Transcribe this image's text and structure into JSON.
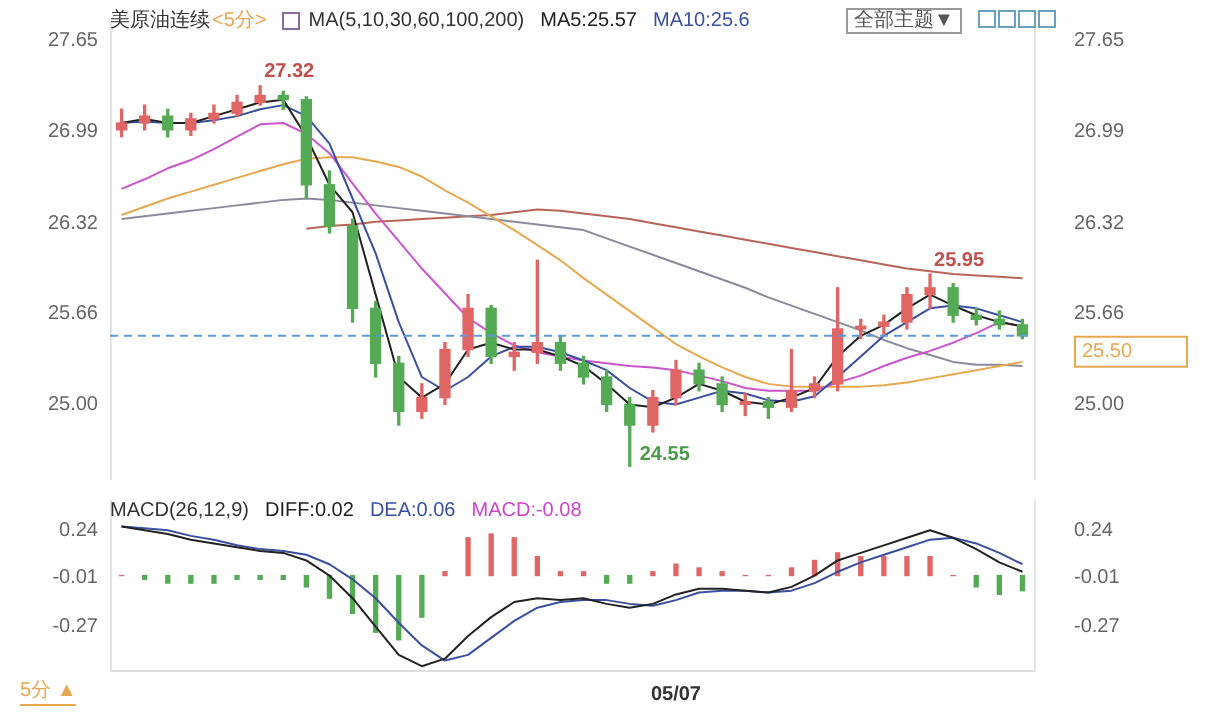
{
  "chart_data": [
    {
      "type": "candlestick",
      "title": "美原油连续",
      "subtitle": "<5分>",
      "legend_title": "MA(5,10,30,60,100,200)",
      "legend": "top",
      "tick_labels": "y",
      "categories": [
        null,
        null,
        null,
        null,
        null,
        null,
        null,
        null,
        null,
        null,
        null,
        null,
        null,
        null,
        null,
        null,
        null,
        null,
        null,
        null,
        null,
        null,
        null,
        null,
        null,
        null,
        null,
        null,
        null,
        null,
        null,
        null,
        null,
        null,
        null,
        null,
        null,
        null,
        null,
        null
      ],
      "ohlc": [
        [
          27.0,
          27.15,
          26.95,
          27.05
        ],
        [
          27.05,
          27.18,
          27.0,
          27.1
        ],
        [
          27.1,
          27.15,
          26.95,
          27.0
        ],
        [
          27.0,
          27.12,
          26.96,
          27.08
        ],
        [
          27.08,
          27.18,
          27.05,
          27.12
        ],
        [
          27.12,
          27.25,
          27.1,
          27.2
        ],
        [
          27.2,
          27.32,
          27.18,
          27.25
        ],
        [
          27.25,
          27.28,
          27.15,
          27.22
        ],
        [
          27.22,
          27.24,
          26.5,
          26.6
        ],
        [
          26.6,
          26.7,
          26.25,
          26.3
        ],
        [
          26.3,
          26.35,
          25.6,
          25.7
        ],
        [
          25.7,
          25.75,
          25.2,
          25.3
        ],
        [
          25.3,
          25.35,
          24.85,
          24.95
        ],
        [
          24.95,
          25.15,
          24.9,
          25.05
        ],
        [
          25.05,
          25.45,
          25.0,
          25.4
        ],
        [
          25.4,
          25.8,
          25.35,
          25.7
        ],
        [
          25.7,
          25.72,
          25.3,
          25.35
        ],
        [
          25.35,
          25.45,
          25.25,
          25.38
        ],
        [
          25.38,
          26.05,
          25.3,
          25.45
        ],
        [
          25.45,
          25.5,
          25.25,
          25.3
        ],
        [
          25.3,
          25.35,
          25.15,
          25.2
        ],
        [
          25.2,
          25.25,
          24.95,
          25.0
        ],
        [
          25.0,
          25.05,
          24.55,
          24.85
        ],
        [
          24.85,
          25.1,
          24.8,
          25.05
        ],
        [
          25.05,
          25.32,
          25.0,
          25.25
        ],
        [
          25.25,
          25.3,
          25.1,
          25.15
        ],
        [
          25.15,
          25.2,
          24.95,
          25.0
        ],
        [
          25.0,
          25.08,
          24.92,
          25.02
        ],
        [
          25.02,
          25.05,
          24.9,
          24.98
        ],
        [
          24.98,
          25.4,
          24.95,
          25.1
        ],
        [
          25.1,
          25.2,
          25.05,
          25.15
        ],
        [
          25.15,
          25.85,
          25.1,
          25.55
        ],
        [
          25.55,
          25.62,
          25.48,
          25.57
        ],
        [
          25.57,
          25.65,
          25.5,
          25.6
        ],
        [
          25.6,
          25.85,
          25.55,
          25.8
        ],
        [
          25.8,
          25.95,
          25.7,
          25.85
        ],
        [
          25.85,
          25.88,
          25.6,
          25.65
        ],
        [
          25.65,
          25.7,
          25.58,
          25.62
        ],
        [
          25.62,
          25.68,
          25.55,
          25.58
        ],
        [
          25.58,
          25.62,
          25.48,
          25.5
        ]
      ],
      "colors": [
        "#e06666",
        "#e06666",
        "#55aa55",
        "#e06666",
        "#e06666",
        "#e06666",
        "#e06666",
        "#55aa55",
        "#55aa55",
        "#55aa55",
        "#55aa55",
        "#55aa55",
        "#55aa55",
        "#e06666",
        "#e06666",
        "#e06666",
        "#55aa55",
        "#e06666",
        "#e06666",
        "#55aa55",
        "#55aa55",
        "#55aa55",
        "#55aa55",
        "#e06666",
        "#e06666",
        "#55aa55",
        "#55aa55",
        "#e06666",
        "#55aa55",
        "#e06666",
        "#e06666",
        "#e06666",
        "#e06666",
        "#e06666",
        "#e06666",
        "#e06666",
        "#55aa55",
        "#55aa55",
        "#55aa55",
        "#55aa55"
      ],
      "series": [
        {
          "name": "MA5:25.57",
          "type": "line",
          "color": "#222222",
          "values": [
            27.05,
            27.08,
            27.05,
            27.05,
            27.1,
            27.15,
            27.2,
            27.22,
            26.95,
            26.6,
            26.4,
            25.8,
            25.2,
            25.05,
            25.15,
            25.4,
            25.45,
            25.4,
            25.4,
            25.35,
            25.28,
            25.15,
            25.0,
            24.98,
            25.05,
            25.15,
            25.1,
            25.02,
            25.0,
            25.05,
            25.12,
            25.35,
            25.5,
            25.58,
            25.7,
            25.8,
            25.72,
            25.65,
            25.6,
            25.57
          ]
        },
        {
          "name": "MA10:25.6",
          "type": "line",
          "color": "#3a4fa0",
          "values": [
            27.05,
            27.06,
            27.05,
            27.05,
            27.07,
            27.1,
            27.15,
            27.18,
            27.1,
            26.9,
            26.5,
            26.1,
            25.6,
            25.2,
            25.1,
            25.2,
            25.35,
            25.42,
            25.42,
            25.38,
            25.32,
            25.25,
            25.12,
            25.02,
            25.0,
            25.05,
            25.1,
            25.08,
            25.03,
            25.02,
            25.06,
            25.2,
            25.35,
            25.5,
            25.6,
            25.7,
            25.72,
            25.7,
            25.65,
            25.6
          ]
        },
        {
          "type": "line",
          "color": "#cc55cc",
          "values": [
            26.57,
            26.64,
            26.72,
            26.78,
            26.86,
            26.95,
            27.04,
            27.05,
            26.97,
            26.83,
            26.61,
            26.39,
            26.19,
            25.99,
            25.81,
            25.63,
            25.52,
            25.43,
            25.38,
            25.35,
            25.32,
            25.3,
            25.28,
            25.27,
            25.25,
            25.21,
            25.17,
            25.12,
            25.1,
            25.1,
            25.1,
            25.16,
            25.21,
            25.28,
            25.34,
            25.39,
            25.45,
            25.52,
            25.6,
            25.57
          ]
        },
        {
          "type": "line",
          "color": "#e8a850",
          "values": [
            26.38,
            26.44,
            26.5,
            26.55,
            26.6,
            26.65,
            26.7,
            26.75,
            26.79,
            26.8,
            26.8,
            26.77,
            26.73,
            26.66,
            26.56,
            26.47,
            26.37,
            26.27,
            26.16,
            26.05,
            25.92,
            25.8,
            25.68,
            25.56,
            25.44,
            25.35,
            25.27,
            25.2,
            25.15,
            25.13,
            25.13,
            25.13,
            25.13,
            25.14,
            25.16,
            25.19,
            25.22,
            25.25,
            25.28,
            25.31
          ]
        },
        {
          "type": "line",
          "color": "#8a8a9a",
          "values": [
            26.35,
            26.37,
            26.39,
            26.41,
            26.43,
            26.45,
            26.47,
            26.49,
            26.5,
            26.49,
            26.47,
            26.45,
            26.43,
            26.41,
            26.39,
            26.37,
            26.35,
            26.33,
            26.31,
            26.29,
            26.27,
            26.21,
            26.15,
            26.09,
            26.03,
            25.97,
            25.91,
            25.85,
            25.78,
            25.72,
            25.66,
            25.6,
            25.54,
            25.47,
            25.41,
            25.36,
            25.31,
            25.29,
            25.29,
            25.28
          ]
        },
        {
          "type": "line",
          "color": "#b86458",
          "values": [
            null,
            null,
            null,
            null,
            null,
            null,
            null,
            null,
            26.28,
            26.3,
            26.31,
            26.33,
            26.34,
            26.35,
            26.36,
            26.37,
            26.38,
            26.4,
            26.42,
            26.41,
            26.39,
            26.37,
            26.35,
            26.32,
            26.29,
            26.26,
            26.23,
            26.2,
            26.17,
            26.14,
            26.11,
            26.08,
            26.05,
            26.02,
            25.99,
            25.97,
            25.95,
            25.94,
            25.93,
            25.92
          ]
        }
      ],
      "ylim": [
        24.45,
        27.8
      ],
      "yticks": [
        {
          "value": 25,
          "label": "25.00"
        },
        25.66,
        26.32,
        26.99,
        27.65
      ],
      "y2lim": [
        24.45,
        27.8
      ],
      "y2ticks": [
        {
          "value": 25,
          "label": "25.00"
        },
        25.66,
        26.32,
        26.99,
        27.65
      ],
      "ref_lines": [
        {
          "axis": "y2",
          "value": 25.5,
          "label": "25.50",
          "color": "#5b9bd5",
          "line_style": "dashed"
        }
      ],
      "annotations": [
        {
          "text": "27.32",
          "y": 27.32
        },
        {
          "text": "25.95",
          "y": 25.95
        },
        "24.55",
        "全部主题▼"
      ]
    },
    {
      "type": "bar",
      "legend_title": "MACD(26,12,9)",
      "legend": "top left",
      "categories": [
        null,
        null,
        null,
        null,
        null,
        null,
        null,
        null,
        null,
        null,
        null,
        null,
        null,
        null,
        null,
        null,
        null,
        null,
        null,
        null,
        null,
        null,
        null,
        null,
        "05/07",
        null,
        null,
        null,
        null,
        null,
        null,
        null,
        null,
        null,
        null,
        null,
        null,
        null,
        null,
        null
      ],
      "series": [
        {
          "type": "bar",
          "colors": [
            "#e06666",
            "#55aa55",
            "#55aa55",
            "#55aa55",
            "#55aa55",
            "#55aa55",
            "#55aa55",
            "#55aa55",
            "#55aa55",
            "#55aa55",
            "#55aa55",
            "#55aa55",
            "#55aa55",
            "#55aa55",
            "#e06666",
            "#e06666",
            "#e06666",
            "#e06666",
            "#e06666",
            "#e06666",
            "#e06666",
            "#55aa55",
            "#55aa55",
            "#e06666",
            "#e06666",
            "#e06666",
            "#e06666",
            "#e06666",
            "#e06666",
            "#e06666",
            "#e06666",
            "#e06666",
            "#e06666",
            "#e06666",
            "#e06666",
            "#e06666",
            "#e06666",
            "#55aa55",
            "#55aa55",
            "#55aa55"
          ],
          "values": [
            0,
            -0.02,
            -0.04,
            -0.04,
            -0.04,
            -0.02,
            -0.02,
            -0.02,
            -0.06,
            -0.12,
            -0.2,
            -0.3,
            -0.34,
            -0.22,
            0.02,
            0.2,
            0.22,
            0.2,
            0.1,
            0.02,
            0.02,
            -0.04,
            -0.04,
            0.02,
            0.06,
            0.04,
            0.02,
            0,
            0,
            0.04,
            0.08,
            0.12,
            0.1,
            0.1,
            0.1,
            0.1,
            0,
            -0.06,
            -0.1,
            -0.08
          ]
        },
        {
          "name": "DIFF:0.02",
          "type": "line",
          "color": "#222222",
          "values": [
            0.26,
            0.24,
            0.22,
            0.19,
            0.17,
            0.15,
            0.13,
            0.12,
            0.08,
            0.0,
            -0.12,
            -0.27,
            -0.42,
            -0.48,
            -0.44,
            -0.32,
            -0.22,
            -0.14,
            -0.12,
            -0.13,
            -0.12,
            -0.15,
            -0.17,
            -0.15,
            -0.1,
            -0.07,
            -0.07,
            -0.08,
            -0.09,
            -0.06,
            0.0,
            0.08,
            0.12,
            0.16,
            0.2,
            0.24,
            0.2,
            0.14,
            0.07,
            0.02
          ]
        },
        {
          "name": "DEA:0.06",
          "type": "line",
          "color": "#3a4fa0",
          "values": [
            0.26,
            0.25,
            0.24,
            0.21,
            0.19,
            0.16,
            0.14,
            0.13,
            0.11,
            0.06,
            -0.02,
            -0.12,
            -0.25,
            -0.37,
            -0.45,
            -0.42,
            -0.33,
            -0.24,
            -0.17,
            -0.14,
            -0.13,
            -0.13,
            -0.15,
            -0.16,
            -0.13,
            -0.09,
            -0.08,
            -0.08,
            -0.09,
            -0.08,
            -0.04,
            0.02,
            0.07,
            0.11,
            0.15,
            0.19,
            0.2,
            0.17,
            0.12,
            0.06
          ]
        }
      ],
      "ylim": [
        -0.5,
        0.4
      ],
      "yticks": [
        0.24,
        -0.01,
        -0.27
      ],
      "y2lim": [
        -0.5,
        0.4
      ],
      "y2ticks": [
        0.24,
        -0.01,
        -0.27
      ],
      "annotations": [
        "MACD:-0.08",
        "5分 ▲"
      ]
    }
  ]
}
